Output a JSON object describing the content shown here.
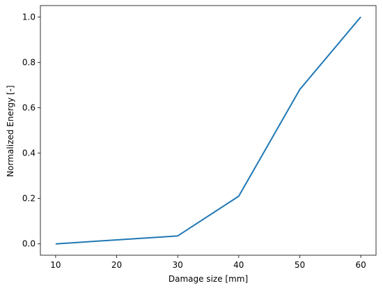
{
  "chart_data": {
    "type": "line",
    "x_label": "Damage size [mm]",
    "y_label": "Normalized Energy [-]",
    "x": [
      10,
      30,
      40,
      50,
      60
    ],
    "series": [
      {
        "color": "#1f77b4",
        "values": [
          0.0,
          0.035,
          0.21,
          0.68,
          1.0
        ]
      }
    ],
    "xlim": [
      7.5,
      62.5
    ],
    "ylim": [
      -0.05,
      1.05
    ],
    "xticks": [
      10,
      20,
      30,
      40,
      50,
      60
    ],
    "yticks": [
      {
        "value": 0,
        "label": "0.0"
      },
      {
        "value": 0.2,
        "label": "0.2"
      },
      {
        "value": 0.4,
        "label": "0.4"
      },
      {
        "value": 0.6,
        "label": "0.6"
      },
      {
        "value": 0.8,
        "label": "0.8"
      },
      {
        "value": 1.0,
        "label": "1.0"
      }
    ],
    "grid": false
  }
}
